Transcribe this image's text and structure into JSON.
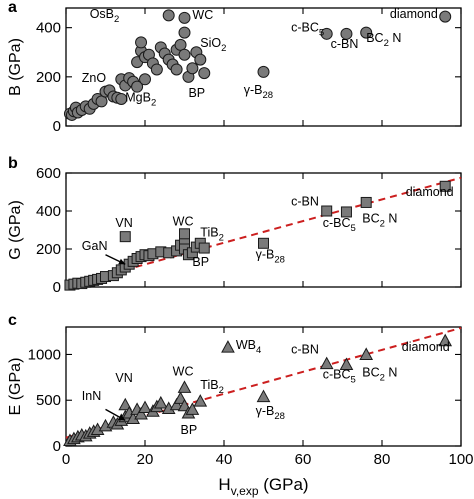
{
  "figure": {
    "xlabel_main": "H",
    "xlabel_sub": "v,exp",
    "xlabel_unit": " (GPa)"
  },
  "chart_data": [
    {
      "panel": "a",
      "type": "scatter",
      "marker": "circle",
      "ylabel": "B (GPa)",
      "xlim": [
        0,
        100
      ],
      "ylim": [
        0,
        480
      ],
      "xticks": [
        0,
        20,
        40,
        60,
        80,
        100
      ],
      "yticks": [
        0,
        200,
        400
      ],
      "show_x_tick_labels": false,
      "points": [
        {
          "x": 1,
          "y": 50
        },
        {
          "x": 1.5,
          "y": 45
        },
        {
          "x": 2,
          "y": 60
        },
        {
          "x": 2.5,
          "y": 75
        },
        {
          "x": 3,
          "y": 55
        },
        {
          "x": 4,
          "y": 65
        },
        {
          "x": 5,
          "y": 80
        },
        {
          "x": 6,
          "y": 70
        },
        {
          "x": 7,
          "y": 90
        },
        {
          "x": 8,
          "y": 110
        },
        {
          "x": 9,
          "y": 100
        },
        {
          "x": 10,
          "y": 140
        },
        {
          "x": 11,
          "y": 145
        },
        {
          "x": 12,
          "y": 120
        },
        {
          "x": 13,
          "y": 115
        },
        {
          "x": 14,
          "y": 110
        },
        {
          "x": 14,
          "y": 190
        },
        {
          "x": 15,
          "y": 165
        },
        {
          "x": 16,
          "y": 195
        },
        {
          "x": 17,
          "y": 180
        },
        {
          "x": 18,
          "y": 160
        },
        {
          "x": 18,
          "y": 260
        },
        {
          "x": 19,
          "y": 305
        },
        {
          "x": 19,
          "y": 340
        },
        {
          "x": 20,
          "y": 190
        },
        {
          "x": 20,
          "y": 280
        },
        {
          "x": 21,
          "y": 290
        },
        {
          "x": 22,
          "y": 255
        },
        {
          "x": 23,
          "y": 230
        },
        {
          "x": 24,
          "y": 320
        },
        {
          "x": 25,
          "y": 295
        },
        {
          "x": 26,
          "y": 270
        },
        {
          "x": 26,
          "y": 450
        },
        {
          "x": 27,
          "y": 250
        },
        {
          "x": 28,
          "y": 230
        },
        {
          "x": 28,
          "y": 310
        },
        {
          "x": 29,
          "y": 330
        },
        {
          "x": 30,
          "y": 380
        },
        {
          "x": 30,
          "y": 440
        },
        {
          "x": 30,
          "y": 290
        },
        {
          "x": 31,
          "y": 200
        },
        {
          "x": 32,
          "y": 235
        },
        {
          "x": 33,
          "y": 300
        },
        {
          "x": 34,
          "y": 270
        },
        {
          "x": 35,
          "y": 215
        },
        {
          "x": 50,
          "y": 220
        },
        {
          "x": 66,
          "y": 375
        },
        {
          "x": 71,
          "y": 375
        },
        {
          "x": 76,
          "y": 380
        },
        {
          "x": 96,
          "y": 445
        }
      ],
      "labels": [
        {
          "text": "OsB",
          "sub": "2",
          "x": 6,
          "y": 440
        },
        {
          "text": "WC",
          "x": 32,
          "y": 435
        },
        {
          "text": "SiO",
          "sub": "2",
          "x": 34,
          "y": 322
        },
        {
          "text": "ZnO",
          "x": 4,
          "y": 180
        },
        {
          "text": "MgB",
          "sub": "2",
          "x": 15,
          "y": 100
        },
        {
          "text": "BP",
          "x": 31,
          "y": 118
        },
        {
          "text": "γ-B",
          "sub": "28",
          "x": 45,
          "y": 130
        },
        {
          "text": "c-BC",
          "sub": "5",
          "x": 57,
          "y": 385
        },
        {
          "text": "c-BN",
          "x": 67,
          "y": 318
        },
        {
          "text": "BC",
          "sub": "2",
          "after": " N",
          "x": 76,
          "y": 342
        },
        {
          "text": "diamond",
          "x": 82,
          "y": 440
        }
      ]
    },
    {
      "panel": "b",
      "type": "scatter",
      "marker": "square",
      "ylabel": "G (GPa)",
      "xlim": [
        0,
        100
      ],
      "ylim": [
        0,
        600
      ],
      "xticks": [
        0,
        20,
        40,
        60,
        80,
        100
      ],
      "yticks": [
        0,
        200,
        400,
        600
      ],
      "show_x_tick_labels": false,
      "fit_line": {
        "x": [
          0,
          100
        ],
        "y": [
          5,
          575
        ]
      },
      "points": [
        {
          "x": 1,
          "y": 10
        },
        {
          "x": 2,
          "y": 15
        },
        {
          "x": 3,
          "y": 20
        },
        {
          "x": 4,
          "y": 18
        },
        {
          "x": 5,
          "y": 25
        },
        {
          "x": 6,
          "y": 30
        },
        {
          "x": 7,
          "y": 35
        },
        {
          "x": 8,
          "y": 40
        },
        {
          "x": 9,
          "y": 45
        },
        {
          "x": 10,
          "y": 55
        },
        {
          "x": 12,
          "y": 60
        },
        {
          "x": 13,
          "y": 75
        },
        {
          "x": 14,
          "y": 90
        },
        {
          "x": 15,
          "y": 105
        },
        {
          "x": 15,
          "y": 265
        },
        {
          "x": 16,
          "y": 120
        },
        {
          "x": 17,
          "y": 135
        },
        {
          "x": 18,
          "y": 150
        },
        {
          "x": 19,
          "y": 160
        },
        {
          "x": 20,
          "y": 170
        },
        {
          "x": 21,
          "y": 165
        },
        {
          "x": 22,
          "y": 175
        },
        {
          "x": 24,
          "y": 185
        },
        {
          "x": 26,
          "y": 180
        },
        {
          "x": 28,
          "y": 190
        },
        {
          "x": 29,
          "y": 220
        },
        {
          "x": 30,
          "y": 250
        },
        {
          "x": 30,
          "y": 280
        },
        {
          "x": 30,
          "y": 200
        },
        {
          "x": 31,
          "y": 170
        },
        {
          "x": 32,
          "y": 180
        },
        {
          "x": 33,
          "y": 210
        },
        {
          "x": 34,
          "y": 230
        },
        {
          "x": 35,
          "y": 205
        },
        {
          "x": 50,
          "y": 230
        },
        {
          "x": 66,
          "y": 400
        },
        {
          "x": 71,
          "y": 395
        },
        {
          "x": 76,
          "y": 445
        },
        {
          "x": 96,
          "y": 530
        }
      ],
      "labels": [
        {
          "text": "VN",
          "x": 12.5,
          "y": 315
        },
        {
          "text": "GaN",
          "x": 4,
          "y": 195
        },
        {
          "text": "WC",
          "x": 27,
          "y": 325
        },
        {
          "text": "TiB",
          "sub": "2",
          "x": 34,
          "y": 265
        },
        {
          "text": "BP",
          "x": 32,
          "y": 110
        },
        {
          "text": "γ-B",
          "sub": "28",
          "x": 48,
          "y": 150
        },
        {
          "text": "c-BN",
          "x": 57,
          "y": 430
        },
        {
          "text": "c-BC",
          "sub": "5",
          "x": 65,
          "y": 315
        },
        {
          "text": "BC",
          "sub": "2",
          "after": " N",
          "x": 75,
          "y": 340
        },
        {
          "text": "diamond",
          "x": 86,
          "y": 480
        }
      ],
      "arrow": {
        "from": [
          10,
          170
        ],
        "to": [
          15,
          120
        ]
      }
    },
    {
      "panel": "c",
      "type": "scatter",
      "marker": "triangle",
      "ylabel": "E (GPa)",
      "xlim": [
        0,
        100
      ],
      "ylim": [
        0,
        1300
      ],
      "xticks": [
        0,
        20,
        40,
        60,
        80,
        100
      ],
      "yticks": [
        0,
        500,
        1000
      ],
      "show_x_tick_labels": true,
      "fit_line": {
        "x": [
          0,
          100
        ],
        "y": [
          90,
          1290
        ]
      },
      "points": [
        {
          "x": 1,
          "y": 60
        },
        {
          "x": 2,
          "y": 80
        },
        {
          "x": 3,
          "y": 100
        },
        {
          "x": 4,
          "y": 120
        },
        {
          "x": 5,
          "y": 110
        },
        {
          "x": 6,
          "y": 140
        },
        {
          "x": 7,
          "y": 160
        },
        {
          "x": 8,
          "y": 180
        },
        {
          "x": 10,
          "y": 220
        },
        {
          "x": 12,
          "y": 260
        },
        {
          "x": 13,
          "y": 240
        },
        {
          "x": 14,
          "y": 280
        },
        {
          "x": 15,
          "y": 450
        },
        {
          "x": 15,
          "y": 320
        },
        {
          "x": 16,
          "y": 360
        },
        {
          "x": 17,
          "y": 300
        },
        {
          "x": 18,
          "y": 400
        },
        {
          "x": 19,
          "y": 350
        },
        {
          "x": 20,
          "y": 420
        },
        {
          "x": 22,
          "y": 380
        },
        {
          "x": 23,
          "y": 430
        },
        {
          "x": 24,
          "y": 470
        },
        {
          "x": 26,
          "y": 410
        },
        {
          "x": 28,
          "y": 450
        },
        {
          "x": 29,
          "y": 520
        },
        {
          "x": 30,
          "y": 640
        },
        {
          "x": 30,
          "y": 440
        },
        {
          "x": 31,
          "y": 360
        },
        {
          "x": 32,
          "y": 400
        },
        {
          "x": 34,
          "y": 490
        },
        {
          "x": 41,
          "y": 1080
        },
        {
          "x": 50,
          "y": 540
        },
        {
          "x": 66,
          "y": 900
        },
        {
          "x": 71,
          "y": 890
        },
        {
          "x": 76,
          "y": 1000
        },
        {
          "x": 96,
          "y": 1150
        }
      ],
      "labels": [
        {
          "text": "VN",
          "x": 12.5,
          "y": 700
        },
        {
          "text": "InN",
          "x": 4,
          "y": 500
        },
        {
          "text": "WC",
          "x": 27,
          "y": 770
        },
        {
          "text": "TiB",
          "sub": "2",
          "x": 34,
          "y": 620
        },
        {
          "text": "BP",
          "x": 29,
          "y": 130
        },
        {
          "text": "WB",
          "sub": "4",
          "x": 43,
          "y": 1060
        },
        {
          "text": "γ-B",
          "sub": "28",
          "x": 48,
          "y": 340
        },
        {
          "text": "c-BN",
          "x": 57,
          "y": 1010
        },
        {
          "text": "c-BC",
          "sub": "5",
          "x": 65,
          "y": 740
        },
        {
          "text": "BC",
          "sub": "2",
          "after": " N",
          "x": 75,
          "y": 760
        },
        {
          "text": "diamond",
          "x": 85,
          "y": 1040
        }
      ],
      "arrow": {
        "from": [
          10,
          400
        ],
        "to": [
          15,
          280
        ]
      }
    }
  ]
}
